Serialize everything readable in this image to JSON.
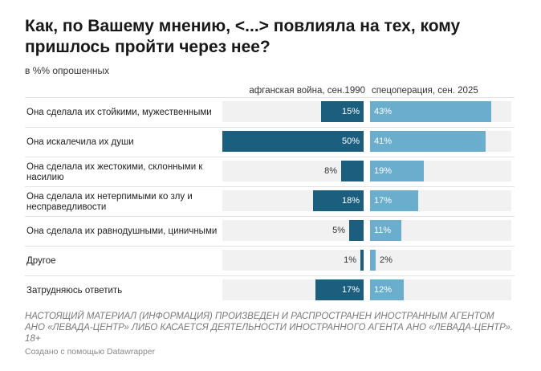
{
  "header": {
    "title": "Как, по Вашему мнению, <...> повлияла на тех, кому пришлось пройти через нее?",
    "subtitle": "в %% опрошенных"
  },
  "columns": {
    "left": "афганская война, сен.1990",
    "right": "спецоперация, сен. 2025"
  },
  "colors": {
    "left_series": "#1c5e7d",
    "right_series": "#6badcc",
    "track": "#f1f1f1"
  },
  "chart_data": {
    "type": "bar",
    "title": "Как, по Вашему мнению, <...> повлияла на тех, кому пришлось пройти через нее?",
    "subtitle": "в %% опрошенных",
    "unit": "%",
    "xlim": [
      0,
      50
    ],
    "categories": [
      "Она сделала их стойкими, мужественными",
      "Она искалечила их души",
      "Она сделала их жестокими, склонными к насилию",
      "Она сделала их нетерпимыми ко злу и несправедливости",
      "Она сделала их равнодушными, циничными",
      "Другое",
      "Затрудняюсь ответить"
    ],
    "series": [
      {
        "name": "афганская война, сен.1990",
        "values": [
          15,
          50,
          8,
          18,
          5,
          1,
          17
        ]
      },
      {
        "name": "спецоперация, сен. 2025",
        "values": [
          43,
          41,
          19,
          17,
          11,
          2,
          12
        ]
      }
    ]
  },
  "footer": {
    "note": "НАСТОЯЩИЙ МАТЕРИАЛ (ИНФОРМАЦИЯ) ПРОИЗВЕДЕН И РАСПРОСТРАНЕН ИНОСТРАННЫМ АГЕНТОМ АНО «ЛЕВАДА-ЦЕНТР» ЛИБО КАСАЕТСЯ ДЕЯТЕЛЬНОСТИ ИНОСТРАННОГО АГЕНТА АНО «ЛЕВАДА-ЦЕНТР». 18+",
    "credit": "Создано с помощью Datawrapper"
  }
}
